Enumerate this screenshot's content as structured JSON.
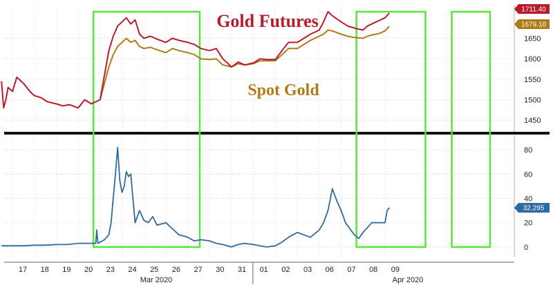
{
  "colors": {
    "futures": "#b81c2c",
    "spot": "#b07a16",
    "vol": "#2e6aa0",
    "highlight": "#55e63a",
    "divider": "#111111"
  },
  "chart_data": [
    {
      "type": "line",
      "title": "",
      "legend_labels": [
        "Gold Futures",
        "Spot Gold"
      ],
      "ylim": [
        1420,
        1730
      ],
      "yticks": [
        "1450",
        "1500",
        "1550",
        "1600",
        "1650"
      ],
      "x_dates": [
        "17",
        "18",
        "19",
        "20",
        "23",
        "24",
        "25",
        "26",
        "27",
        "30",
        "31",
        "01",
        "02",
        "03",
        "06",
        "07",
        "08",
        "09"
      ],
      "last_values": [
        "1711.40",
        "1679.10"
      ],
      "series": [
        {
          "name": "Gold Futures",
          "x": [
            -0.5,
            -0.4,
            -0.3,
            -0.2,
            0.0,
            0.2,
            0.5,
            0.8,
            1.0,
            1.3,
            1.6,
            2.0,
            2.3,
            2.6,
            3.0,
            3.3,
            3.6,
            3.8,
            4.0,
            4.2,
            4.4,
            4.6,
            4.8,
            5.0,
            5.2,
            5.4,
            5.6,
            5.8,
            6.0,
            6.3,
            6.6,
            7.0,
            7.3,
            7.6,
            8.0,
            8.3,
            8.6,
            9.0,
            9.3,
            9.6,
            10.0,
            10.3,
            10.6,
            11.0,
            11.3,
            11.6,
            12.0,
            12.3,
            12.6,
            13.0,
            13.3,
            13.6,
            14.0,
            14.2,
            14.4,
            14.6,
            15.0,
            15.3,
            15.6,
            16.0,
            16.2,
            16.4,
            16.6,
            16.8,
            17.0,
            17.2
          ],
          "values": [
            1545,
            1480,
            1500,
            1530,
            1520,
            1555,
            1540,
            1520,
            1510,
            1505,
            1495,
            1490,
            1485,
            1488,
            1480,
            1500,
            1490,
            1495,
            1500,
            1560,
            1620,
            1655,
            1680,
            1690,
            1700,
            1685,
            1695,
            1660,
            1650,
            1655,
            1648,
            1640,
            1650,
            1645,
            1640,
            1635,
            1625,
            1620,
            1625,
            1600,
            1580,
            1592,
            1585,
            1590,
            1600,
            1598,
            1598,
            1620,
            1640,
            1640,
            1650,
            1660,
            1670,
            1690,
            1715,
            1705,
            1690,
            1680,
            1675,
            1670,
            1680,
            1685,
            1690,
            1695,
            1700,
            1711.4
          ]
        },
        {
          "name": "Spot Gold",
          "x": [
            4.0,
            4.2,
            4.4,
            4.6,
            4.8,
            5.0,
            5.2,
            5.4,
            5.6,
            5.8,
            6.0,
            6.3,
            6.6,
            7.0,
            7.3,
            7.6,
            8.0,
            8.3,
            8.6,
            9.0,
            9.3,
            9.6,
            10.0,
            10.3,
            10.6,
            11.0,
            11.3,
            11.6,
            12.0,
            12.3,
            12.6,
            13.0,
            13.3,
            13.6,
            14.0,
            14.2,
            14.4,
            14.6,
            15.0,
            15.3,
            15.6,
            16.0,
            16.2,
            16.4,
            16.6,
            16.8,
            17.0,
            17.2
          ],
          "values": [
            1500,
            1540,
            1580,
            1610,
            1630,
            1640,
            1650,
            1640,
            1645,
            1630,
            1625,
            1628,
            1622,
            1615,
            1625,
            1620,
            1615,
            1610,
            1600,
            1598,
            1600,
            1585,
            1580,
            1588,
            1585,
            1588,
            1595,
            1595,
            1595,
            1610,
            1625,
            1625,
            1635,
            1645,
            1655,
            1660,
            1670,
            1668,
            1660,
            1655,
            1652,
            1650,
            1655,
            1658,
            1660,
            1663,
            1668,
            1679.1
          ]
        }
      ]
    },
    {
      "type": "line",
      "title": "",
      "ylim": [
        -8,
        92
      ],
      "yticks": [
        "0",
        "20",
        "40",
        "60",
        "80"
      ],
      "month_labels": [
        "Mar 2020",
        "Apr 2020"
      ],
      "last_values": [
        "32.295"
      ],
      "series": [
        {
          "name": "",
          "x": [
            -0.5,
            0.0,
            0.5,
            1.0,
            1.5,
            2.0,
            2.5,
            3.0,
            3.5,
            3.8,
            3.85,
            3.9,
            4.0,
            4.2,
            4.4,
            4.5,
            4.6,
            4.7,
            4.8,
            4.9,
            5.0,
            5.1,
            5.2,
            5.3,
            5.4,
            5.5,
            5.6,
            5.7,
            5.8,
            6.0,
            6.2,
            6.4,
            6.6,
            7.0,
            7.3,
            7.6,
            8.0,
            8.3,
            8.6,
            9.0,
            9.3,
            9.6,
            10.0,
            10.3,
            10.6,
            11.0,
            11.3,
            11.6,
            12.0,
            12.3,
            12.6,
            13.0,
            13.3,
            13.6,
            14.0,
            14.2,
            14.4,
            14.6,
            14.8,
            15.0,
            15.2,
            15.4,
            15.6,
            15.8,
            16.0,
            16.2,
            16.4,
            16.6,
            16.8,
            17.0,
            17.1,
            17.2
          ],
          "values": [
            1,
            1,
            1,
            1.5,
            1.5,
            2,
            2,
            3,
            3,
            3,
            14,
            3,
            4,
            6,
            10,
            20,
            40,
            60,
            82,
            55,
            45,
            50,
            62,
            58,
            60,
            40,
            20,
            25,
            30,
            22,
            20,
            25,
            18,
            20,
            15,
            10,
            8,
            5,
            6,
            5,
            3,
            2,
            0,
            2,
            3,
            2,
            1,
            0,
            1,
            4,
            8,
            12,
            10,
            8,
            14,
            20,
            30,
            48,
            38,
            30,
            20,
            15,
            10,
            7,
            12,
            16,
            20,
            20,
            20,
            20,
            30,
            32.295
          ]
        }
      ]
    }
  ]
}
